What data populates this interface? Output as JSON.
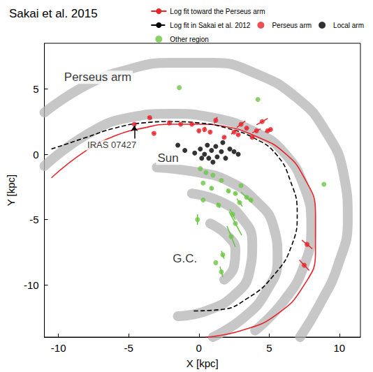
{
  "chart_data": {
    "type": "scatter",
    "title": "Sakai et al. 2015",
    "xlabel": "X [kpc]",
    "ylabel": "Y [kpc]",
    "xlim": [
      -11,
      11.5
    ],
    "ylim": [
      -14,
      8.5
    ],
    "xticks": [
      -10,
      -5,
      0,
      5,
      10
    ],
    "yticks": [
      -10,
      -5,
      0,
      5
    ],
    "grid": false,
    "legend": "top right",
    "arms": {
      "color": "#b4b4b4",
      "lines": [
        {
          "x": [
            -11,
            -8,
            -5,
            -2,
            1,
            4,
            7,
            9,
            10.3,
            10.6,
            9.9,
            8.6,
            7.2
          ],
          "y": [
            3.2,
            5.3,
            6.5,
            7.0,
            7.0,
            6.2,
            4.3,
            1.8,
            -1.5,
            -5,
            -8.5,
            -11.5,
            -14
          ]
        },
        {
          "x": [
            -11,
            -8,
            -5,
            -2,
            1,
            4,
            6,
            7.5,
            8,
            7.5,
            6,
            4
          ],
          "y": [
            -0.9,
            1.5,
            2.8,
            3.1,
            2.8,
            1.7,
            0.2,
            -2.5,
            -5.5,
            -8.5,
            -11.3,
            -13.5
          ]
        },
        {
          "x": [
            -3,
            0,
            2,
            4,
            5.3,
            5.6,
            4.8,
            3.2,
            1
          ],
          "y": [
            -1.0,
            -1.4,
            -2.0,
            -3.5,
            -5.5,
            -8,
            -10.5,
            -12.5,
            -14
          ]
        },
        {
          "x": [
            -0.5,
            1.5,
            3,
            3.8,
            3.6,
            2.5,
            0.5,
            -1.5
          ],
          "y": [
            -3.0,
            -3.6,
            -4.8,
            -6.8,
            -9,
            -10.8,
            -12,
            -12.4
          ]
        },
        {
          "x": [
            0.8,
            2.0,
            2.6,
            2.5,
            1.8
          ],
          "y": [
            -5.3,
            -6.2,
            -7.4,
            -8.6,
            -9.6
          ]
        }
      ]
    },
    "series": [
      {
        "name": "Perseus arm",
        "type": "scatter",
        "color": "#e8232a",
        "marker": "circle",
        "x": [
          -4.6,
          -3.5,
          -3.2,
          -2.1,
          -1.3,
          -0.5,
          0,
          0.4,
          0.8,
          1.2,
          1.8,
          2.5,
          2.8,
          3.0,
          3.4,
          3.8,
          4.1,
          4.5,
          4.9,
          5.1,
          7.7,
          7.5
        ],
        "y": [
          2.3,
          2.8,
          1.6,
          2.4,
          2.3,
          2.3,
          1.8,
          1.9,
          1.7,
          2.6,
          1.3,
          1.7,
          1.5,
          2.3,
          2.0,
          1.3,
          1.8,
          2.5,
          1.8,
          1.9,
          -6.9,
          -8.5
        ],
        "errors": [
          [
            0.1,
            -0.05
          ],
          [
            0.15,
            -0.1
          ],
          [
            0.1,
            -0.05
          ],
          [
            0.1,
            -0.1
          ],
          [
            0.05,
            -0.1
          ],
          [
            0.02,
            -0.1
          ],
          [
            0,
            0.1
          ],
          [
            0.05,
            0.2
          ],
          [
            0.05,
            0.1
          ],
          [
            0.1,
            0.25
          ],
          [
            0.1,
            0.1
          ],
          [
            0.2,
            0.15
          ],
          [
            0.1,
            0.05
          ],
          [
            0.3,
            0.25
          ],
          [
            0.1,
            0.05
          ],
          [
            0.1,
            0.05
          ],
          [
            0.3,
            0.15
          ],
          [
            0.4,
            0.25
          ],
          [
            0.2,
            0.1
          ],
          [
            0.1,
            0.05
          ],
          [
            0.37,
            -0.33
          ],
          [
            0.35,
            -0.4
          ]
        ]
      },
      {
        "name": "Local arm",
        "type": "scatter",
        "color": "#000000",
        "marker": "circle",
        "x": [
          -1.5,
          -1.0,
          -0.3,
          0.1,
          0.4,
          0.7,
          0.9,
          1.2,
          1.3,
          1.6,
          1.9,
          2.2,
          2.5,
          0.6,
          1.0,
          0.2,
          1.7,
          2.8
        ],
        "y": [
          0.7,
          0.3,
          0.1,
          0.4,
          0.0,
          -0.3,
          0.3,
          0.6,
          -0.2,
          0.2,
          -0.3,
          0.4,
          0.2,
          0.7,
          -0.6,
          -0.3,
          0.9,
          0.0
        ]
      },
      {
        "name": "Other region",
        "type": "scatter",
        "color": "#6cc644",
        "marker": "circle",
        "x": [
          -1.4,
          4.2,
          8.9,
          0.1,
          0.5,
          1.0,
          0.3,
          0.9,
          1.6,
          2.1,
          2.6,
          3.0,
          3.4,
          3.7,
          0.3,
          1.4,
          2.4,
          2.6,
          -0.1,
          2.3,
          1.7,
          1.2,
          1.6,
          2.9
        ],
        "y": [
          5.1,
          4.2,
          -2.3,
          -1.1,
          -1.4,
          -1.6,
          -2.2,
          -2.6,
          -2.0,
          -2.8,
          -3.0,
          -2.4,
          -3.3,
          -3.5,
          -3.5,
          -3.9,
          -4.6,
          -5.3,
          -5.0,
          -6.3,
          -7.7,
          -8.3,
          -9.0,
          -3.7
        ],
        "errors": [
          [
            0,
            0
          ],
          [
            0,
            0
          ],
          [
            0,
            0
          ],
          [
            0,
            0
          ],
          [
            0,
            0
          ],
          [
            0,
            0
          ],
          [
            0,
            0
          ],
          [
            0.05,
            -0.15
          ],
          [
            0,
            0
          ],
          [
            0.1,
            -0.15
          ],
          [
            0.1,
            -0.1
          ],
          [
            0,
            0
          ],
          [
            0.4,
            -0.4
          ],
          [
            0.1,
            -0.1
          ],
          [
            0,
            0
          ],
          [
            0.1,
            -0.2
          ],
          [
            0.2,
            -0.4
          ],
          [
            0.45,
            -0.9
          ],
          [
            0,
            -0.4
          ],
          [
            0.3,
            -0.8
          ],
          [
            0.1,
            -0.3
          ],
          [
            0,
            0
          ],
          [
            0.1,
            -0.4
          ],
          [
            0.2,
            -0.3
          ]
        ]
      },
      {
        "name": "Log fit toward the Perseus arm",
        "type": "line",
        "color": "#e8232a",
        "line_style": "solid",
        "x": [
          -10.5,
          -8,
          -6,
          -4,
          -2,
          0,
          2,
          4,
          6,
          7.5,
          8.3,
          8.3,
          7.5,
          5.5,
          3,
          0.5
        ],
        "y": [
          -1.8,
          0.3,
          1.4,
          2.0,
          2.3,
          2.3,
          2.1,
          1.4,
          0.2,
          -1.8,
          -4.5,
          -7.5,
          -10,
          -12.3,
          -13.5,
          -14
        ]
      },
      {
        "name": "Log fit in Sakai et al. 2012",
        "type": "line",
        "color": "#000000",
        "line_style": "dashed",
        "x": [
          -10.5,
          -8,
          -6,
          -4,
          -2,
          0,
          2,
          4,
          5.5,
          6.5,
          7,
          6.6,
          5.3,
          3.5,
          1.5,
          -0.5
        ],
        "y": [
          0.4,
          1.3,
          2.0,
          2.4,
          2.5,
          2.4,
          2.0,
          1.2,
          0,
          -2,
          -4.5,
          -7,
          -9.3,
          -11,
          -11.9,
          -12
        ]
      }
    ],
    "annotations": [
      {
        "text": "Perseus arm",
        "x": -7.2,
        "y": 5.9
      },
      {
        "text": "IRAS 07427",
        "x": -6.2,
        "y": 0.7,
        "arrow": [
          -4.6,
          2.2
        ]
      },
      {
        "text": "Sun",
        "x": -2.2,
        "y": -0.3
      },
      {
        "text": "G.C.",
        "x": -1.0,
        "y": -8.0
      }
    ]
  }
}
